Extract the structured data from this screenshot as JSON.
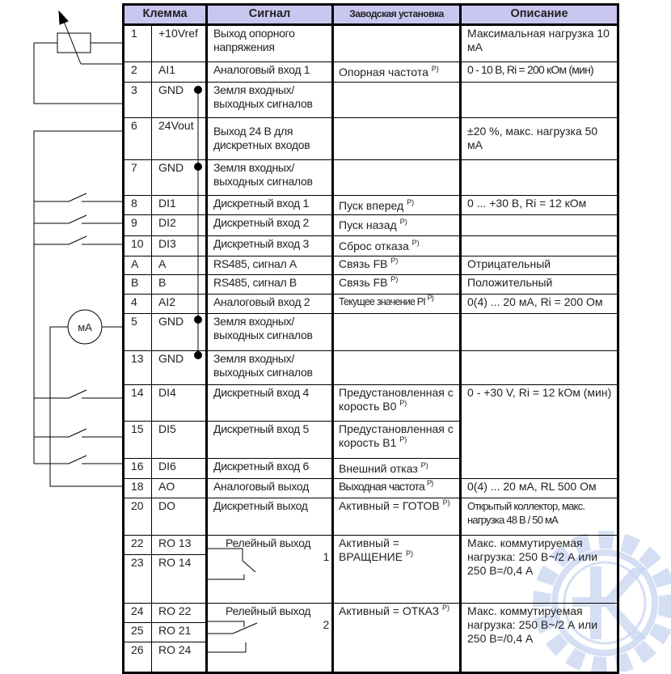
{
  "headers": {
    "terminal": "Клемма",
    "signal": "Сигнал",
    "default": "Заводская установка",
    "description": "Описание"
  },
  "note_mark": "P)",
  "meter_label": "мА",
  "rows": [
    {
      "num": "1",
      "name": "+10Vref",
      "signal": "Выход опорного напряжения",
      "setting": "",
      "description": "Максимальная нагрузка 10 мА"
    },
    {
      "num": "2",
      "name": "AI1",
      "signal": "Аналоговый вход 1",
      "setting": "Опорная частота",
      "description": "0 - 10 В, Ri = 200 кОм (мин)"
    },
    {
      "num": "3",
      "name": "GND",
      "signal": "Земля входных/ выходных сигналов",
      "setting": "",
      "description": ""
    },
    {
      "num": "6",
      "name": "24Vout",
      "signal": "Выход 24 В для дискретных входов",
      "setting": "",
      "description": "±20 %, макс. нагрузка 50 мА"
    },
    {
      "num": "7",
      "name": "GND",
      "signal": "Земля входных/ выходных сигналов",
      "setting": "",
      "description": ""
    },
    {
      "num": "8",
      "name": "DI1",
      "signal": "Дискретный вход 1",
      "setting": "Пуск вперед",
      "description": "0 ... +30 В, Ri = 12 кОм"
    },
    {
      "num": "9",
      "name": "DI2",
      "signal": "Дискретный вход 2",
      "setting": "Пуск назад",
      "description": ""
    },
    {
      "num": "10",
      "name": "DI3",
      "signal": "Дискретный вход 3",
      "setting": "Сброс отказа",
      "description": ""
    },
    {
      "num": "A",
      "name": "A",
      "signal": "RS485, сигнал A",
      "setting": "Связь FB",
      "description": "Отрицательный"
    },
    {
      "num": "B",
      "name": "B",
      "signal": "RS485, сигнал B",
      "setting": "Связь FB",
      "description": "Положительный"
    },
    {
      "num": "4",
      "name": "AI2",
      "signal": "Аналоговый вход 2",
      "setting": "Текущее значение PI",
      "description": "0(4) ... 20 мА, Ri = 200 Ом"
    },
    {
      "num": "5",
      "name": "GND",
      "signal": "Земля входных/ выходных сигналов",
      "setting": "",
      "description": ""
    },
    {
      "num": "13",
      "name": "GND",
      "signal": "Земля входных/ выходных сигналов",
      "setting": "",
      "description": ""
    },
    {
      "num": "14",
      "name": "DI4",
      "signal": "Дискретный вход 4",
      "setting": "Предустановленная скорость В0",
      "description": "0 - +30 V, Ri = 12 kОм (мин)"
    },
    {
      "num": "15",
      "name": "DI5",
      "signal": "Дискретный вход 5",
      "setting": "Предустановленная скорость В1",
      "description": ""
    },
    {
      "num": "16",
      "name": "DI6",
      "signal": "Дискретный вход 6",
      "setting": "Внешний отказ",
      "description": ""
    },
    {
      "num": "18",
      "name": "AO",
      "signal": "Аналоговый выход",
      "setting": "Выходная частота",
      "description": "0(4) ... 20 мА, RL  500 Ом"
    },
    {
      "num": "20",
      "name": "DO",
      "signal": "Дискретный выход",
      "setting": "Активный = ГОТОВ",
      "description": "Открытый коллектор, макс. нагрузка 48 В / 50 мА"
    },
    {
      "num": "22",
      "name": "RO 13",
      "signal": "Релейный выход",
      "signal_num": "1",
      "setting": "Активный = ВРАЩЕНИЕ",
      "description": "Макс. коммутируемая нагрузка: 250 В~/2 А или 250 В=/0,4 А"
    },
    {
      "num": "23",
      "name": "RO 14"
    },
    {
      "num": "24",
      "name": "RO 22",
      "signal": "Релейный выход",
      "signal_num": "2",
      "setting": "Активный = ОТКАЗ",
      "description": "Макс. коммутируемая нагрузка: 250 В~/2 А или 250 В=/0,4 А"
    },
    {
      "num": "25",
      "name": "RO 21"
    },
    {
      "num": "26",
      "name": "RO 24"
    }
  ],
  "colors": {
    "header_bg": "#c9c6f0",
    "watermark": "#c8d5f0"
  }
}
